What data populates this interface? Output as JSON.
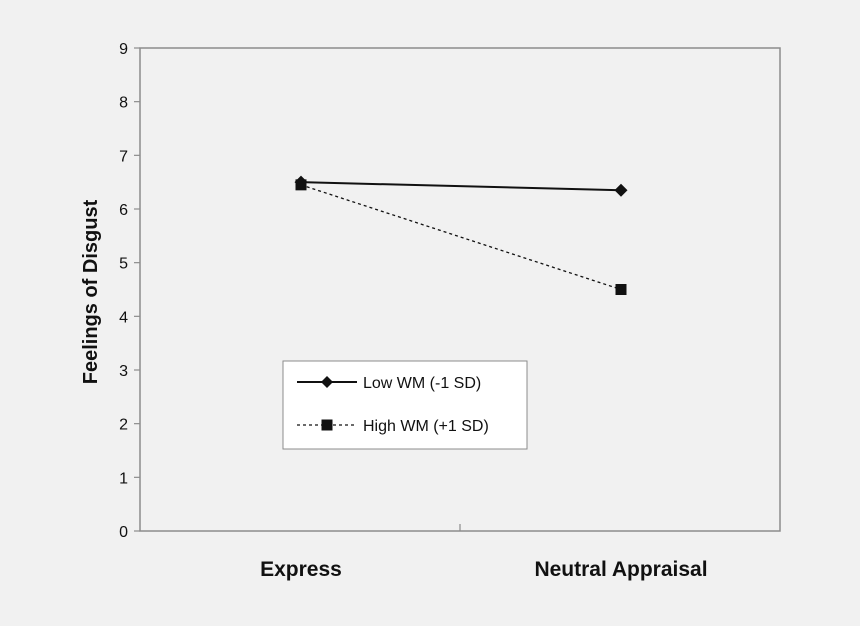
{
  "chart_data": {
    "type": "line",
    "title": "",
    "xlabel": "",
    "ylabel": "Feelings of Disgust",
    "categories": [
      "Express",
      "Neutral Appraisal"
    ],
    "ylim": [
      0,
      9
    ],
    "yticks": [
      "0",
      "1",
      "2",
      "3",
      "4",
      "5",
      "6",
      "7",
      "8",
      "9"
    ],
    "grid": false,
    "legend_position": "center-left",
    "series": [
      {
        "name": "Low WM (-1 SD)",
        "values": [
          6.5,
          6.35
        ],
        "marker": "diamond",
        "line_style": "solid",
        "color": "#111111"
      },
      {
        "name": "High WM (+1 SD)",
        "values": [
          6.45,
          4.5
        ],
        "marker": "square",
        "line_style": "dotted",
        "color": "#111111"
      }
    ]
  },
  "colors": {
    "background": "#f1f1f1",
    "axis": "#8c8c8c",
    "ink": "#111111",
    "legend_bg": "#ffffff"
  }
}
